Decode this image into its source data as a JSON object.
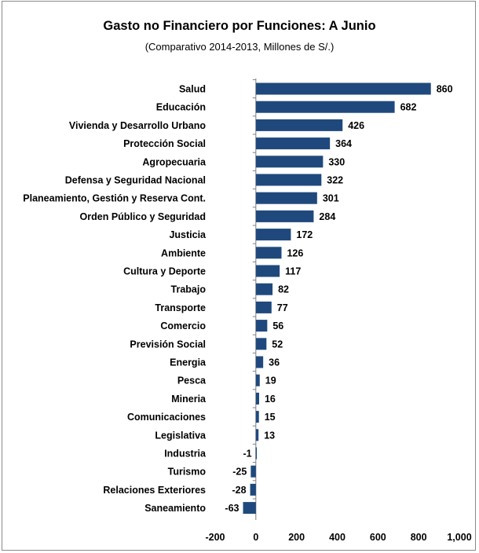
{
  "chart_data": {
    "type": "bar",
    "orientation": "horizontal",
    "title": "Gasto no Financiero por Funciones: A  Junio",
    "subtitle": "(Comparativo 2014-2013, Millones de S/.)",
    "categories": [
      "Salud",
      "Educación",
      "Vivienda y Desarrollo Urbano",
      "Protección Social",
      "Agropecuaria",
      "Defensa y Seguridad Nacional",
      "Planeamiento, Gestión y Reserva Cont.",
      "Orden Público y Seguridad",
      "Justicia",
      "Ambiente",
      "Cultura y Deporte",
      "Trabajo",
      "Transporte",
      "Comercio",
      "Previsión Social",
      "Energia",
      "Pesca",
      "Mineria",
      "Comunicaciones",
      "Legislativa",
      "Industria",
      "Turismo",
      "Relaciones Exteriores",
      "Saneamiento"
    ],
    "values": [
      860,
      682,
      426,
      364,
      330,
      322,
      301,
      284,
      172,
      126,
      117,
      82,
      77,
      56,
      52,
      36,
      19,
      16,
      15,
      13,
      -1,
      -25,
      -28,
      -63
    ],
    "value_labels": [
      "860",
      "682",
      "426",
      "364",
      "330",
      "322",
      "301",
      "284",
      "172",
      "126",
      "117",
      "82",
      "77",
      "56",
      "52",
      "36",
      "19",
      "16",
      "15",
      "13",
      "-1",
      "-25",
      "-28",
      "-63"
    ],
    "xlim": [
      -200,
      1000
    ],
    "xticks": [
      -200,
      0,
      200,
      400,
      600,
      800,
      1000
    ],
    "xtick_labels": [
      "-200",
      "0",
      "200",
      "400",
      "600",
      "800",
      "1,000"
    ],
    "bar_color": "#1f497d",
    "grid": false,
    "legend": "none"
  }
}
